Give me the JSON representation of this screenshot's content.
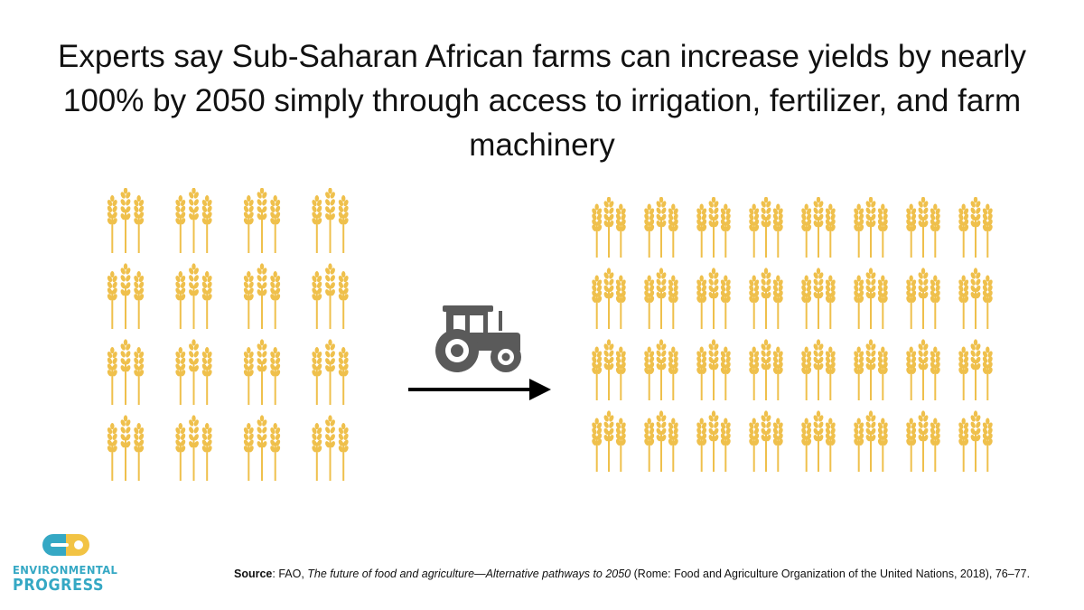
{
  "headline": "Experts say Sub-Saharan African farms can increase yields by nearly 100% by 2050 simply through access to irrigation, fertilizer, and farm machinery",
  "illustration": {
    "before_field": {
      "rows": 4,
      "columns": 4,
      "icon": "wheat-icon"
    },
    "after_field": {
      "rows": 4,
      "columns": 8,
      "icon": "wheat-icon"
    },
    "transition_icons": [
      "tractor-icon",
      "arrow-right-icon"
    ],
    "colors": {
      "wheat": "#EFC04C",
      "tractor": "#5A5A5A",
      "arrow": "#000000"
    }
  },
  "logo": {
    "line1": "ENVIRONMENTAL",
    "line2": "PROGRESS",
    "colors": {
      "text": "#35A8C4",
      "mark_left": "#35A8C4",
      "mark_right": "#F2C344"
    }
  },
  "source": {
    "label": "Source",
    "prefix": ": FAO, ",
    "title": "The future of food and agriculture—Alternative pathways to 2050",
    "suffix": " (Rome: Food and Agriculture Organization of the United Nations, 2018), 76–77."
  }
}
